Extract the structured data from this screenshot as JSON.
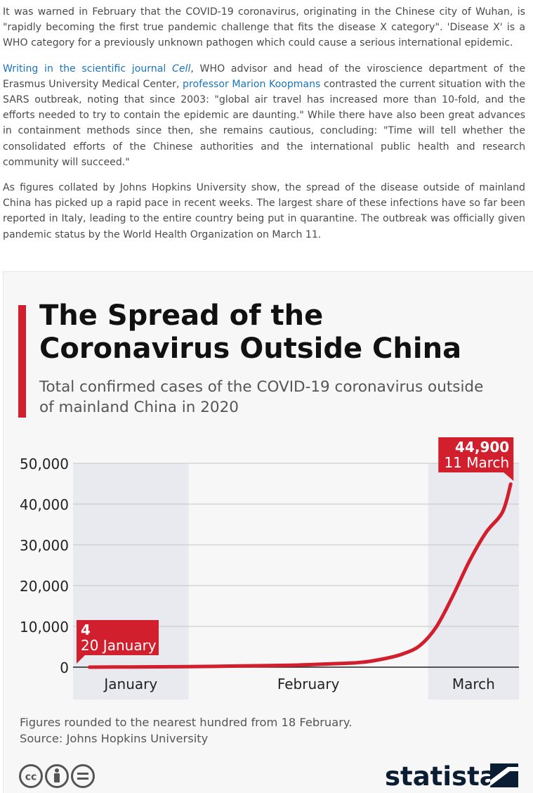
{
  "article": {
    "p1": "It was warned in February that the COVID-19 coronavirus, originating in the Chinese city of Wuhan, is \"rapidly becoming the first true pandemic challenge that fits the disease X category\". 'Disease X' is a WHO category for a previously unknown pathogen which could cause a serious international epidemic.",
    "p2_link1_prefix": "Writing in the scientific journal ",
    "p2_link1_italic": "Cell",
    "p2_text1": ", WHO advisor and head of the viroscience department of the Erasmus University Medical Center, ",
    "p2_link2": "professor Marion Koopmans",
    "p2_text2": " contrasted the current situation with the SARS outbreak, noting that since 2003: \"global air travel has increased more than 10-fold, and the efforts needed to try to contain the epidemic are daunting.\" While there have also been great advances in containment methods since then, she remains cautious, concluding: \"Time will tell whether the consolidated efforts of the Chinese authorities and the international public health and research community will succeed.\"",
    "p3": "As figures collated by Johns Hopkins University show, the spread of the disease outside of mainland China has picked up a rapid pace in recent weeks. The largest share of these infections have so far been reported in Italy, leading to the entire country being put in quarantine. The outbreak was officially given pandemic status by the World Health Organization on March 11."
  },
  "colors": {
    "accent": "#d21f2e",
    "link": "#1b75bb",
    "band": "#e8eaf0"
  },
  "chart_data": {
    "type": "line",
    "title": "The Spread of the Coronavirus Outside China",
    "subtitle": "Total confirmed cases of the COVID-19 coronavirus outside of mainland China in 2020",
    "xlabel": "",
    "ylabel": "",
    "ylim": [
      0,
      50000
    ],
    "yticks": [
      0,
      10000,
      20000,
      30000,
      40000,
      50000
    ],
    "ytick_labels": [
      "0",
      "10,000",
      "20,000",
      "30,000",
      "40,000",
      "50,000"
    ],
    "month_labels": [
      "January",
      "February",
      "March"
    ],
    "grid": true,
    "x": [
      "2020-01-20",
      "2020-01-25",
      "2020-01-30",
      "2020-02-04",
      "2020-02-09",
      "2020-02-14",
      "2020-02-18",
      "2020-02-22",
      "2020-02-25",
      "2020-02-27",
      "2020-02-29",
      "2020-03-02",
      "2020-03-04",
      "2020-03-06",
      "2020-03-08",
      "2020-03-10",
      "2020-03-11"
    ],
    "values": [
      4,
      50,
      100,
      200,
      350,
      500,
      800,
      1200,
      2200,
      3300,
      5300,
      9900,
      17500,
      26000,
      33000,
      38000,
      44900
    ],
    "annotations": [
      {
        "value": "4",
        "date": "20 January"
      },
      {
        "value": "44,900",
        "date": "11 March"
      }
    ]
  },
  "footer": {
    "note": "Figures rounded to the nearest hundred from 18 February.",
    "source": "Source: Johns Hopkins University",
    "brand": "statista"
  }
}
